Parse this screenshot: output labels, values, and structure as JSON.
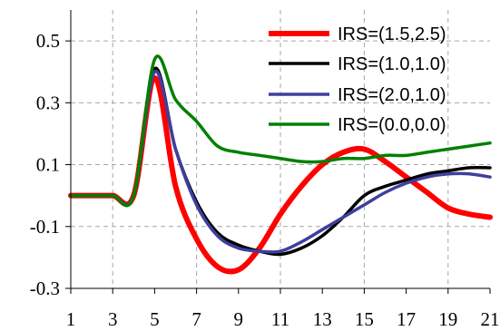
{
  "chart_data": {
    "type": "line",
    "title": "",
    "xlabel": "",
    "ylabel": "",
    "xlim": [
      1,
      21
    ],
    "ylim": [
      -0.3,
      0.6
    ],
    "x_ticks": [
      1,
      3,
      5,
      7,
      9,
      11,
      13,
      15,
      17,
      19,
      21
    ],
    "y_ticks": [
      -0.3,
      -0.1,
      0.1,
      0.3,
      0.5
    ],
    "x_tick_labels": [
      "1",
      "3",
      "5",
      "7",
      "9",
      "11",
      "13",
      "15",
      "17",
      "19",
      "21"
    ],
    "y_tick_labels": [
      "-0.3",
      "-0.1",
      "0.1",
      "0.3",
      "0.5"
    ],
    "grid": true,
    "legend_position": "top-right",
    "x": [
      1,
      2,
      3,
      4,
      5,
      6,
      7,
      8,
      9,
      10,
      11,
      12,
      13,
      14,
      15,
      16,
      17,
      18,
      19,
      20,
      21
    ],
    "series": [
      {
        "name": "IRS=(1.5,2.5)",
        "color": "#ff0000",
        "line_width": "thick",
        "values": [
          0.0,
          0.0,
          0.0,
          0.0,
          0.38,
          0.03,
          -0.14,
          -0.23,
          -0.24,
          -0.17,
          -0.06,
          0.03,
          0.1,
          0.14,
          0.15,
          0.11,
          0.06,
          0.01,
          -0.04,
          -0.06,
          -0.07
        ]
      },
      {
        "name": "IRS=(1.0,1.0)",
        "color": "#000000",
        "line_width": "medium",
        "values": [
          0.0,
          0.0,
          0.0,
          0.0,
          0.41,
          0.15,
          -0.02,
          -0.12,
          -0.16,
          -0.18,
          -0.19,
          -0.17,
          -0.13,
          -0.07,
          0.0,
          0.03,
          0.05,
          0.07,
          0.08,
          0.09,
          0.09
        ]
      },
      {
        "name": "IRS=(2.0,1.0)",
        "color": "#3f3f9f",
        "line_width": "medium",
        "values": [
          0.0,
          0.0,
          0.0,
          0.0,
          0.4,
          0.15,
          -0.03,
          -0.13,
          -0.17,
          -0.18,
          -0.18,
          -0.15,
          -0.11,
          -0.07,
          -0.03,
          0.01,
          0.04,
          0.06,
          0.07,
          0.07,
          0.06
        ]
      },
      {
        "name": "IRS=(0.0,0.0)",
        "color": "#008000",
        "line_width": "medium",
        "values": [
          0.0,
          0.0,
          0.0,
          0.0,
          0.44,
          0.31,
          0.24,
          0.16,
          0.14,
          0.13,
          0.12,
          0.11,
          0.11,
          0.12,
          0.12,
          0.13,
          0.13,
          0.14,
          0.15,
          0.16,
          0.17
        ]
      }
    ]
  }
}
